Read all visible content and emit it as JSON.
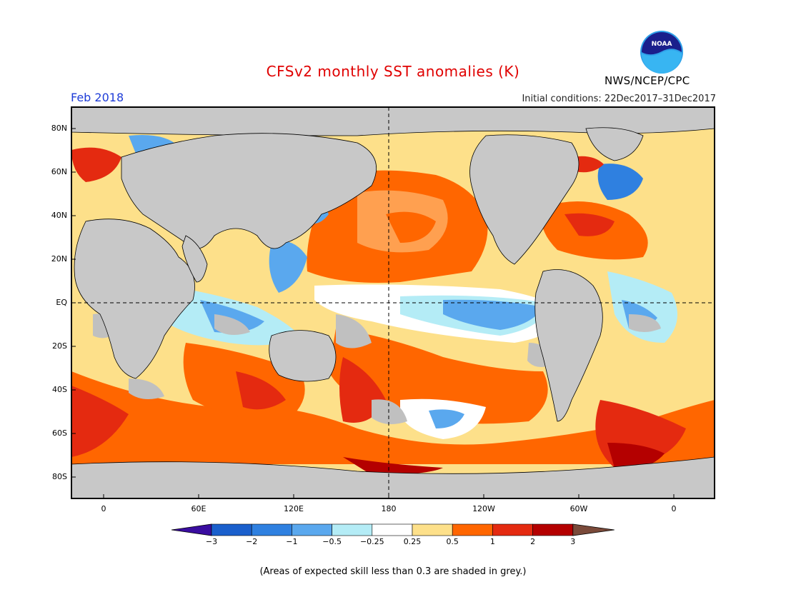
{
  "title": "CFSv2 monthly SST anomalies (K)",
  "month": "Feb 2018",
  "initial_conditions": "Initial conditions: 22Dec2017–31Dec2017",
  "agency": "NWS/NCEP/CPC",
  "logo_text": "NOAA",
  "lat_labels": [
    "80N",
    "60N",
    "40N",
    "20N",
    "EQ",
    "20S",
    "40S",
    "60S",
    "80S"
  ],
  "lon_labels": [
    "0",
    "60E",
    "120E",
    "180",
    "120W",
    "60W",
    "0"
  ],
  "colorbar": {
    "ticks": [
      "−3",
      "−2",
      "−1",
      "−0.5",
      "−0.25",
      "0.25",
      "0.5",
      "1",
      "2",
      "3"
    ],
    "colors": [
      "#3a0da0",
      "#1a5fcc",
      "#2f80e0",
      "#5aa8ee",
      "#b4ecf6",
      "#ffffff",
      "#fde08a",
      "#ff6600",
      "#e42a10",
      "#b40000",
      "#7a4a3a"
    ]
  },
  "colors": {
    "land": "#c8c8c8",
    "grey_skill": "#c0c0c0",
    "title": "#e00000",
    "month": "#1e3cd8"
  },
  "note": "(Areas of expected skill less than 0.3 are shaded in grey.)"
}
